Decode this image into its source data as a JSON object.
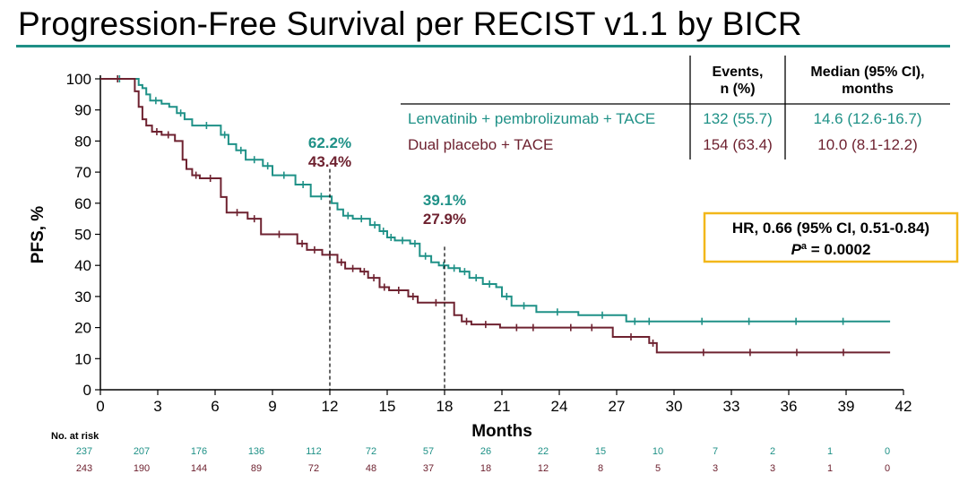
{
  "title": "Progression-Free Survival per RECIST v1.1 by BICR",
  "colors": {
    "arm1": "#1f9187",
    "arm2": "#6e2230",
    "hr_border": "#f2b71a",
    "rule": "#1f8f86"
  },
  "chart_data": {
    "type": "line",
    "subtype": "kaplan-meier",
    "xlabel": "Months",
    "ylabel": "PFS, %",
    "xlim": [
      0,
      42
    ],
    "ylim": [
      0,
      100
    ],
    "xticks": [
      0,
      3,
      6,
      9,
      12,
      15,
      18,
      21,
      24,
      27,
      30,
      33,
      36,
      39,
      42
    ],
    "yticks": [
      0,
      10,
      20,
      30,
      40,
      50,
      60,
      70,
      80,
      90,
      100
    ],
    "series": [
      {
        "name": "Lenvatinib + pembrolizumab + TACE",
        "color": "#1f9187",
        "events": "132 (55.7)",
        "median": "14.6 (12.6-16.7)",
        "x": [
          0,
          2.0,
          2.2,
          2.4,
          2.6,
          3.2,
          3.6,
          4.0,
          4.4,
          4.8,
          6.3,
          6.7,
          7.1,
          7.6,
          8.5,
          9.0,
          10.2,
          11.0,
          12.1,
          12.4,
          12.7,
          13.2,
          14.1,
          14.6,
          15.0,
          15.4,
          16.2,
          16.7,
          17.3,
          17.7,
          18.2,
          18.8,
          19.3,
          20.0,
          20.7,
          21.0,
          21.5,
          22.8,
          25.0,
          27.5,
          28.4,
          29.0,
          41.3
        ],
        "y": [
          100,
          98,
          97,
          95,
          93,
          92,
          91,
          89,
          87,
          85,
          82,
          79,
          77,
          74,
          72,
          69,
          66,
          62.2,
          60,
          58,
          56,
          55,
          53,
          51,
          49,
          48,
          47,
          43,
          41,
          40,
          39.1,
          38,
          36,
          34,
          33,
          30,
          27,
          25,
          24,
          22,
          22,
          22,
          22
        ],
        "landmarks": [
          {
            "month": 12,
            "label": "62.2%"
          },
          {
            "month": 18,
            "label": "39.1%"
          }
        ],
        "at_risk": [
          237,
          207,
          176,
          136,
          112,
          72,
          57,
          26,
          22,
          15,
          10,
          7,
          2,
          1,
          0
        ]
      },
      {
        "name": "Dual placebo + TACE",
        "color": "#6e2230",
        "events": "154 (63.4)",
        "median": "10.0 (8.1-12.2)",
        "x": [
          0,
          1.8,
          2.0,
          2.2,
          2.4,
          2.7,
          3.2,
          3.9,
          4.3,
          4.5,
          4.8,
          5.2,
          6.3,
          6.6,
          7.7,
          8.4,
          10.3,
          10.8,
          11.6,
          12.4,
          12.8,
          13.6,
          14.0,
          14.6,
          15.1,
          16.1,
          16.6,
          18.5,
          18.9,
          19.4,
          20.9,
          23.5,
          26.8,
          28.7,
          29.1,
          41.3
        ],
        "y": [
          100,
          96,
          91,
          87,
          85,
          83,
          82,
          80,
          74,
          71,
          69,
          68,
          62,
          57,
          55,
          50,
          47,
          45,
          43.4,
          41,
          39,
          38,
          36,
          33,
          32,
          30,
          28,
          24,
          22,
          21,
          20,
          20,
          17,
          15,
          12,
          12
        ],
        "landmarks": [
          {
            "month": 12,
            "label": "43.4%"
          },
          {
            "month": 18,
            "label": "27.9%"
          }
        ],
        "at_risk": [
          243,
          190,
          144,
          89,
          72,
          48,
          37,
          18,
          12,
          8,
          5,
          3,
          3,
          1,
          0
        ]
      }
    ],
    "legend_table": {
      "headers": [
        "Events,\nn (%)",
        "Median (95% CI),\nmonths"
      ]
    },
    "hr_box": {
      "line1": "HR, 0.66 (95% CI, 0.51-0.84)",
      "p_label": "P",
      "p_sup": "a",
      "p_value": " = 0.0002"
    },
    "at_risk_label": "No. at risk",
    "at_risk_months": [
      0,
      3,
      6,
      9,
      12,
      15,
      18,
      21,
      24,
      27,
      30,
      33,
      36,
      39,
      42
    ]
  }
}
